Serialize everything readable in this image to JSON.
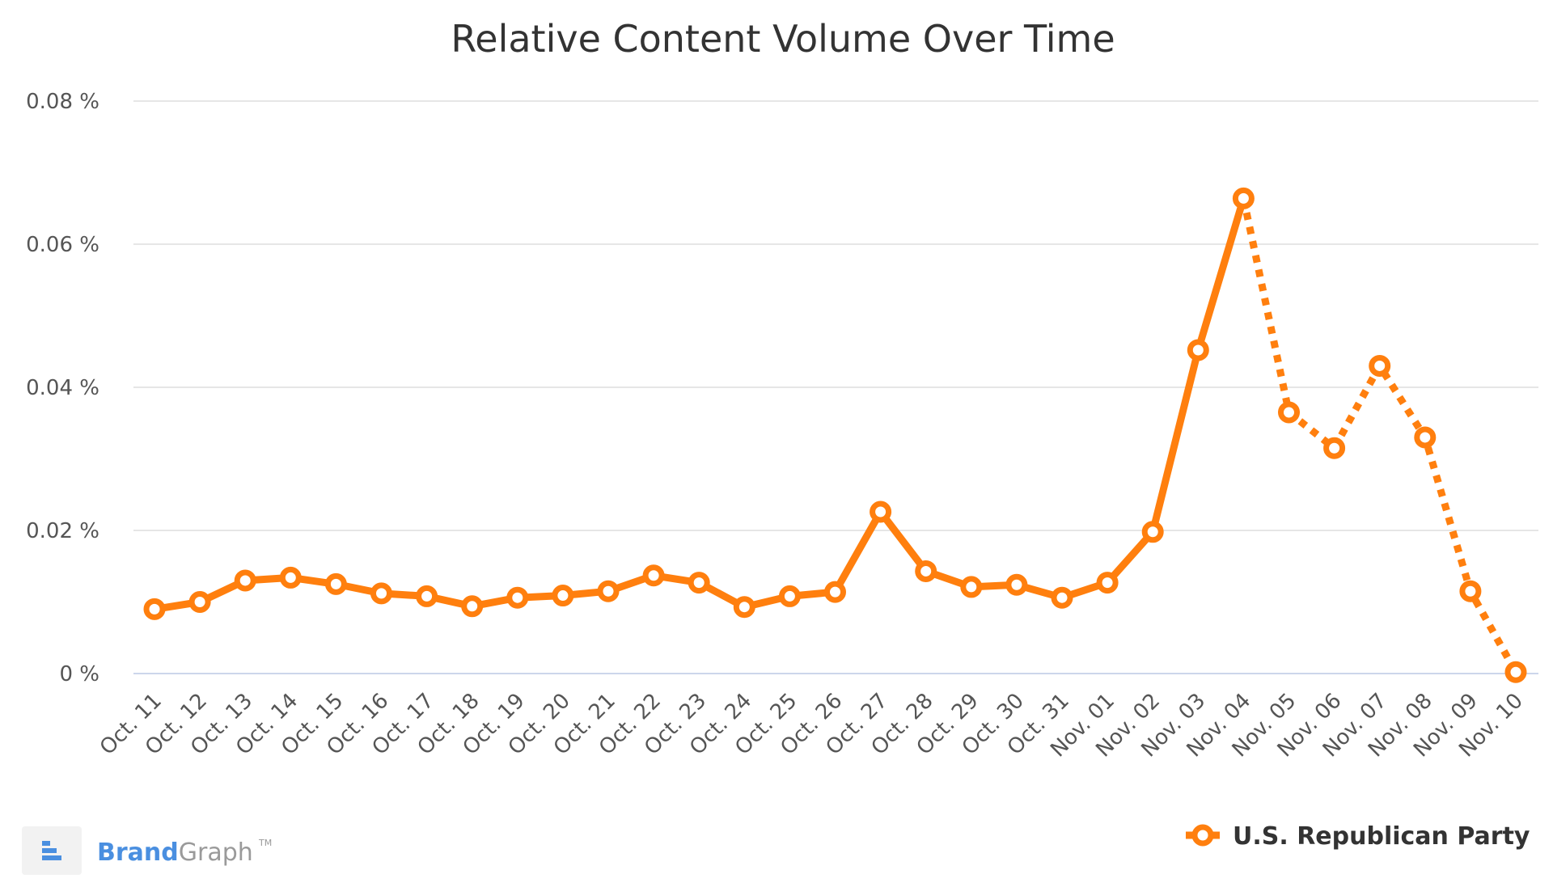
{
  "chart_data": {
    "type": "line",
    "title": "Relative Content Volume Over Time",
    "xlabel": "",
    "ylabel": "",
    "ylim": [
      0,
      0.08
    ],
    "y_ticks": [
      "0 %",
      "0.02 %",
      "0.04 %",
      "0.06 %",
      "0.08 %"
    ],
    "y_tick_values": [
      0,
      0.02,
      0.04,
      0.06,
      0.08
    ],
    "grid": true,
    "legend_position": "bottom-right",
    "categories": [
      "Oct. 11",
      "Oct. 12",
      "Oct. 13",
      "Oct. 14",
      "Oct. 15",
      "Oct. 16",
      "Oct. 17",
      "Oct. 18",
      "Oct. 19",
      "Oct. 20",
      "Oct. 21",
      "Oct. 22",
      "Oct. 23",
      "Oct. 24",
      "Oct. 25",
      "Oct. 26",
      "Oct. 27",
      "Oct. 28",
      "Oct. 29",
      "Oct. 30",
      "Oct. 31",
      "Nov. 01",
      "Nov. 02",
      "Nov. 03",
      "Nov. 04",
      "Nov. 05",
      "Nov. 06",
      "Nov. 07",
      "Nov. 08",
      "Nov. 09",
      "Nov. 10"
    ],
    "series": [
      {
        "name": "U.S. Republican Party",
        "color": "#ff7f0e",
        "values": [
          0.009,
          0.01,
          0.013,
          0.0134,
          0.0125,
          0.0112,
          0.0108,
          0.0094,
          0.0106,
          0.0109,
          0.0115,
          0.0137,
          0.0127,
          0.0093,
          0.0108,
          0.0114,
          0.0226,
          0.0143,
          0.0121,
          0.0124,
          0.0106,
          0.0127,
          0.0198,
          0.0452,
          0.0664,
          0.0365,
          0.0315,
          0.043,
          0.033,
          0.0115,
          0.0002
        ],
        "dashed_from_category": "Nov. 04"
      }
    ]
  },
  "branding": {
    "brand_part": "Brand",
    "graph_part": "Graph",
    "tm": "TM",
    "logo_icon": "bar-stack-icon"
  },
  "colors": {
    "series": "#ff7f0e",
    "grid": "#e6e6e6",
    "baseline": "#ccd6eb",
    "brand_blue": "#4a8fe0",
    "brand_gray": "#9a9a9a"
  }
}
